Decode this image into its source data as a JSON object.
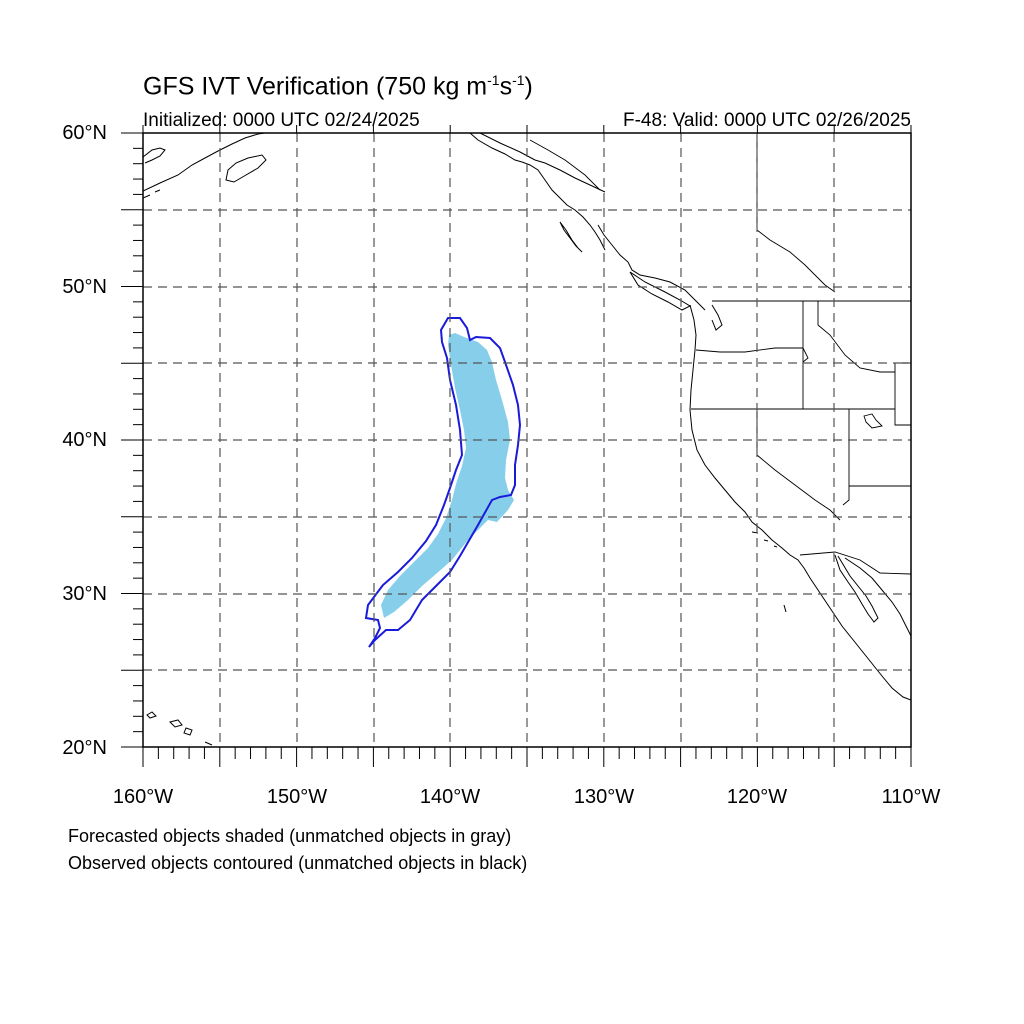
{
  "title": {
    "main": "GFS IVT Verification (750 kg m",
    "exp1": "-1",
    "mid": "s",
    "exp2": "-1",
    "close": ")"
  },
  "initialized": "Initialized: 0000 UTC 02/24/2025",
  "valid": "F-48: Valid: 0000 UTC 02/26/2025",
  "lat_labels": [
    "60°N",
    "50°N",
    "40°N",
    "30°N",
    "20°N"
  ],
  "lon_labels": [
    "160°W",
    "150°W",
    "140°W",
    "130°W",
    "120°W",
    "110°W"
  ],
  "notes": [
    "Forecasted objects shaded (unmatched objects in gray)",
    "Observed objects contoured (unmatched objects in black)"
  ],
  "map": {
    "lon_range": [
      -160,
      -110
    ],
    "lat_range": [
      20,
      60
    ],
    "projection": "cylindrical equidistant",
    "grid": "dashed every 5 degrees"
  },
  "colors": {
    "forecast_fill": "#87ceeb",
    "observed_contour": "#1a1adb",
    "grid": "#555555",
    "coast": "#000000"
  }
}
